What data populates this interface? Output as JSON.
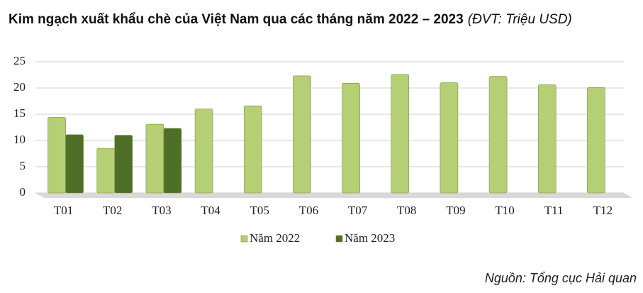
{
  "chart_data": {
    "type": "bar",
    "title": "Kim ngạch xuất khẩu chè của Việt Nam qua các tháng năm 2022 – 2023",
    "subtitle": "(ĐVT: Triệu USD)",
    "source": "Nguồn: Tổng cục Hải quan",
    "categories": [
      "T01",
      "T02",
      "T03",
      "T04",
      "T05",
      "T06",
      "T07",
      "T08",
      "T09",
      "T10",
      "T11",
      "T12"
    ],
    "series": [
      {
        "name": "Năm 2022",
        "color": "#b5cf74",
        "values": [
          14.4,
          8.5,
          13.1,
          16.0,
          16.6,
          22.3,
          20.9,
          22.6,
          21.0,
          22.2,
          20.6,
          20.1
        ]
      },
      {
        "name": "Năm 2023",
        "color": "#4f6f27",
        "values": [
          11.1,
          11.0,
          12.3,
          null,
          null,
          null,
          null,
          null,
          null,
          null,
          null,
          null
        ]
      }
    ],
    "ylim": [
      0,
      25
    ],
    "yticks": [
      0,
      5,
      10,
      15,
      20,
      25
    ],
    "grid": true
  }
}
